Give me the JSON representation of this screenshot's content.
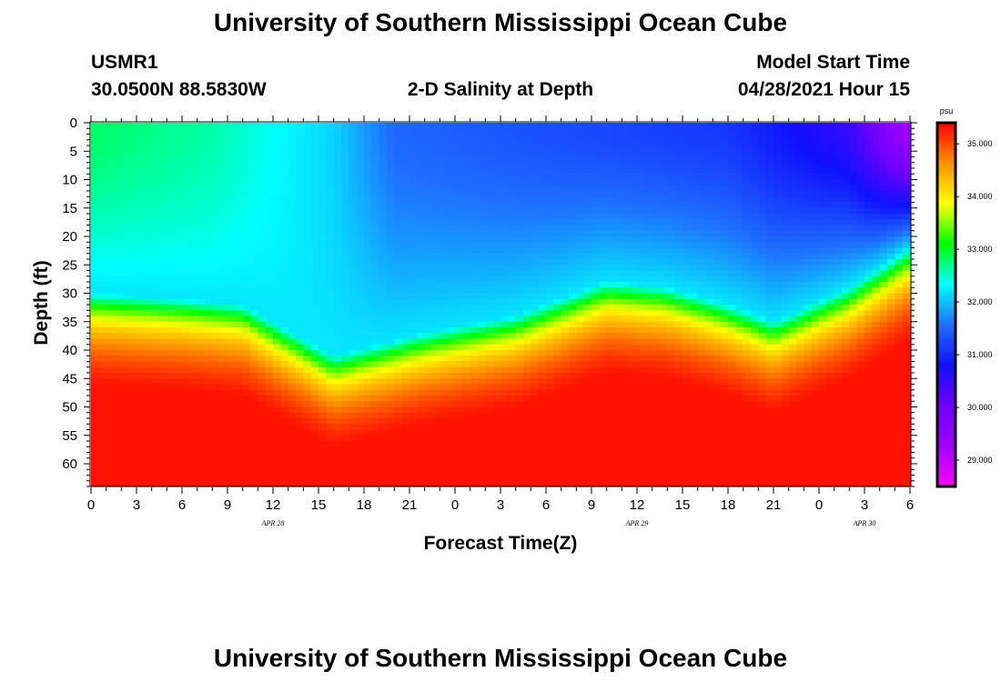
{
  "page": {
    "title_top": "University of Southern Mississippi Ocean Cube",
    "title_bottom": "University of Southern Mississippi Ocean Cube"
  },
  "header": {
    "station": "USMR1",
    "location": "30.0500N  88.5830W",
    "plot_title": "2-D Salinity at Depth",
    "start_label": "Model Start Time",
    "start_value": "04/28/2021 Hour 15"
  },
  "colors": {
    "ramp": [
      "#ff00ff",
      "#a000ff",
      "#7000ff",
      "#1010ff",
      "#1f6fff",
      "#00ffff",
      "#00ff00",
      "#ffff00",
      "#ff9000",
      "#ff0000"
    ]
  },
  "chart_data": {
    "type": "heatmap",
    "title": "2-D Salinity at Depth",
    "xlabel": "Forecast Time(Z)",
    "ylabel": "Depth (ft)",
    "x_ticks": [
      "0",
      "3",
      "6",
      "9",
      "12",
      "15",
      "18",
      "21",
      "0",
      "3",
      "6",
      "9",
      "12",
      "15",
      "18",
      "21",
      "0",
      "3",
      "6"
    ],
    "x_range_hours": [
      0,
      54
    ],
    "date_labels": [
      {
        "text": "APR 28",
        "hour": 12
      },
      {
        "text": "APR 29",
        "hour": 36
      },
      {
        "text": "APR 30",
        "hour": 51
      }
    ],
    "y_ticks": [
      0,
      5,
      10,
      15,
      20,
      25,
      30,
      35,
      40,
      45,
      50,
      55,
      60
    ],
    "y_range_ft": [
      0,
      64
    ],
    "colorbar": {
      "unit": "psu",
      "range": [
        28.5,
        35.4
      ],
      "ticks": [
        "35.000",
        "34.000",
        "33.000",
        "32.000",
        "31.000",
        "30.000",
        "29.000"
      ]
    },
    "halocline_depth_ft": {
      "hours": [
        0,
        6,
        10,
        16,
        22,
        28,
        34,
        38,
        42,
        45,
        50,
        54
      ],
      "depths": [
        36,
        37,
        38,
        47,
        43,
        40,
        34,
        35,
        38,
        41,
        35,
        28
      ]
    },
    "surface_salinity_psu": {
      "hours": [
        0,
        8,
        16,
        20,
        30,
        42,
        50,
        54
      ],
      "values": [
        32.8,
        32.6,
        32.1,
        31.5,
        31.3,
        31.1,
        30.5,
        29.2
      ]
    },
    "bottom_salinity_psu": 35.3
  }
}
